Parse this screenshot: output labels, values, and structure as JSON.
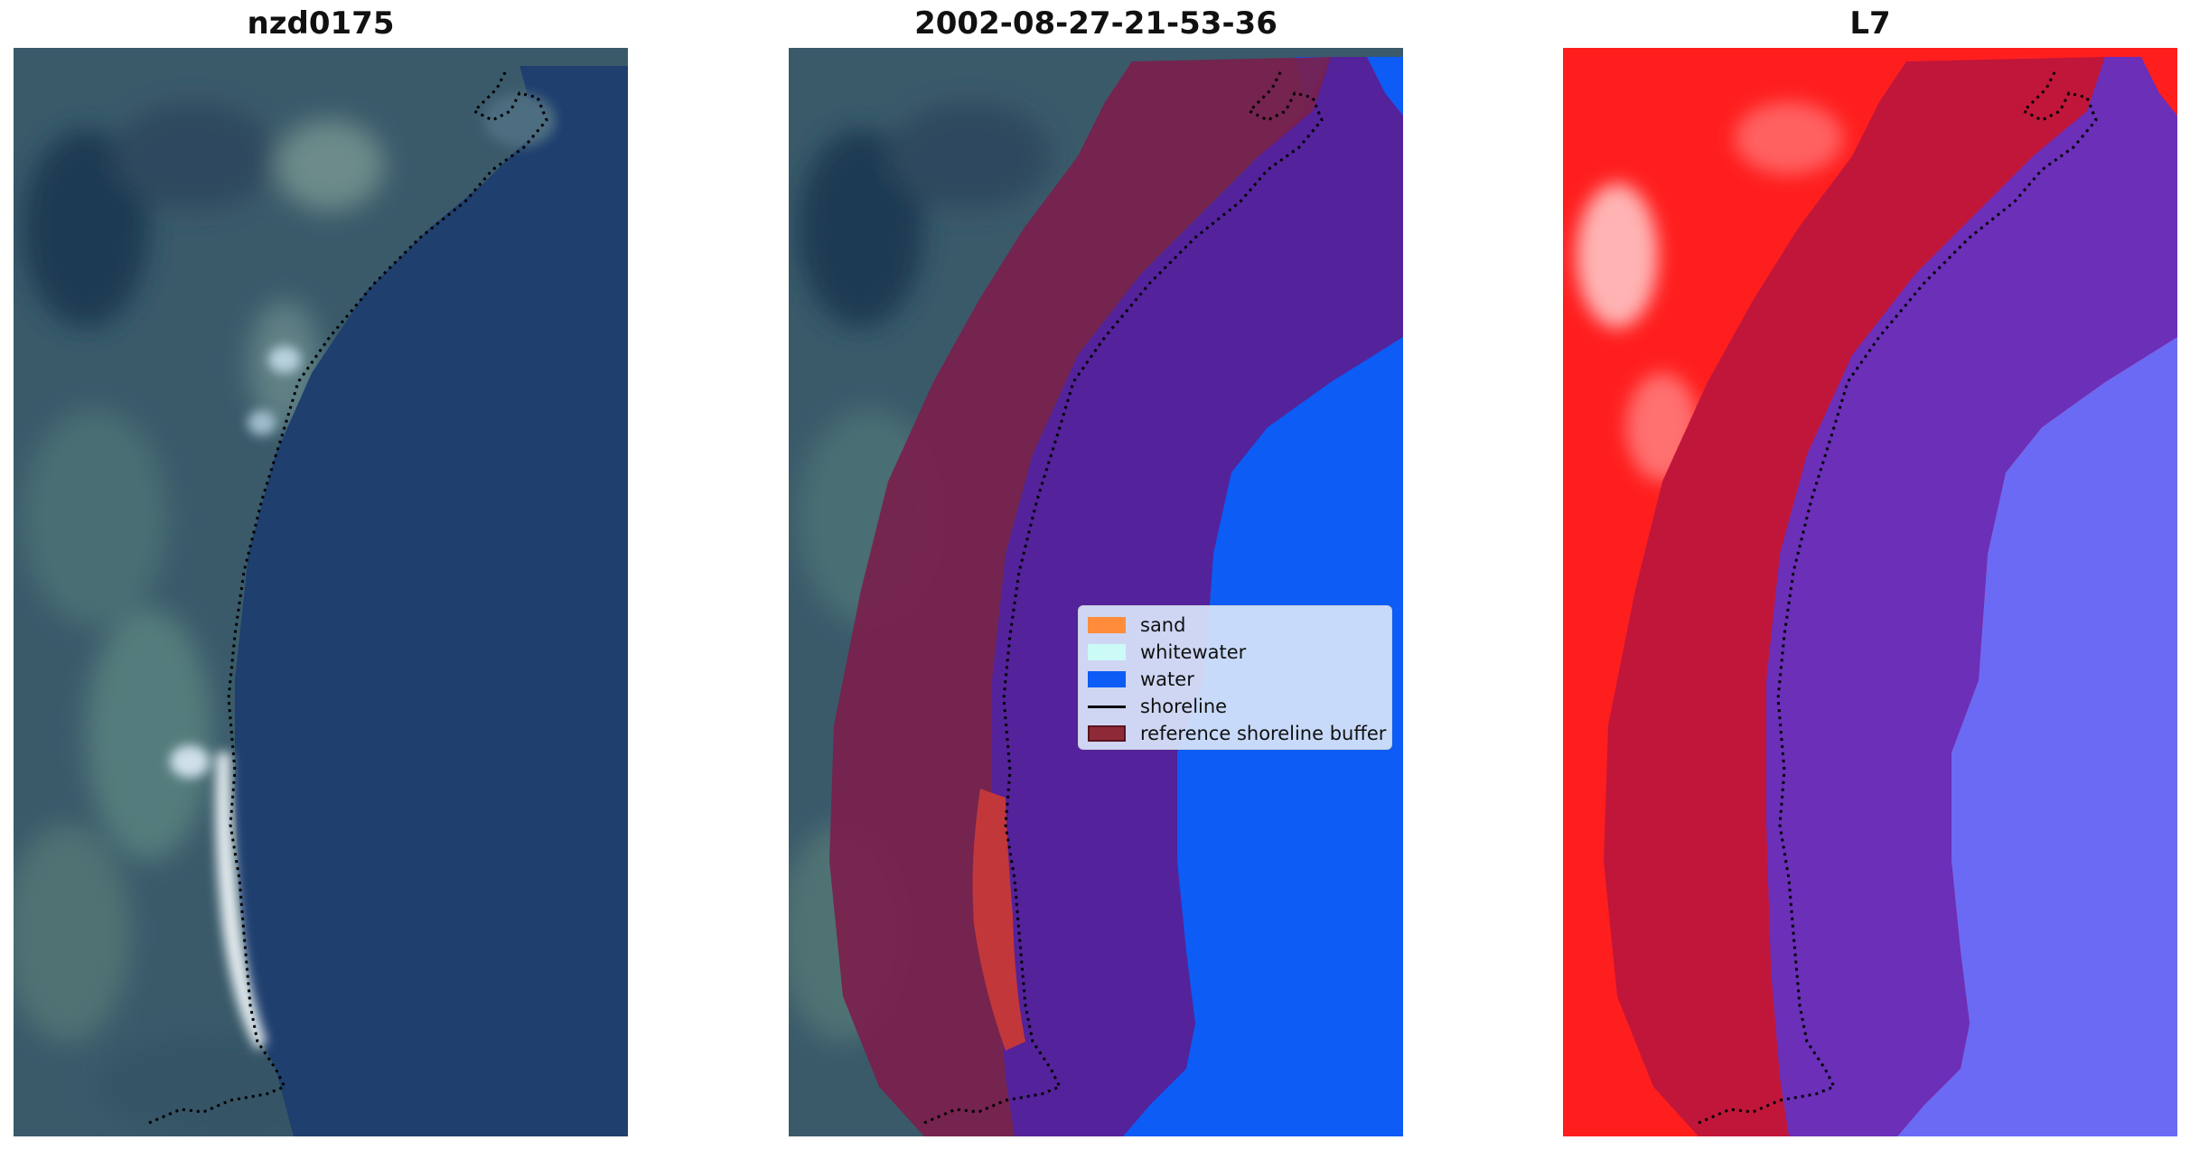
{
  "panels": [
    {
      "title": "nzd0175",
      "content": "rgb"
    },
    {
      "title": "2002-08-27-21-53-36",
      "content": "classification"
    },
    {
      "title": "L7",
      "content": "index"
    }
  ],
  "legend": {
    "items": [
      {
        "label": "sand",
        "color": "#ff8c3a",
        "kind": "patch"
      },
      {
        "label": "whitewater",
        "color": "#ccfbf7",
        "kind": "patch"
      },
      {
        "label": "water",
        "color": "#0d5cf5",
        "kind": "patch"
      },
      {
        "label": "shoreline",
        "color": "#000000",
        "kind": "line"
      },
      {
        "label": "reference shoreline buffer",
        "color": "#8e2a38",
        "kind": "patch"
      }
    ]
  },
  "colors": {
    "land": "#3c5b6b",
    "sea": "#1f3f6e",
    "beach": "#d8e2ea",
    "water_class": "#0d5cf5",
    "buffer": "#7a1f4c",
    "buffer_over_water": "#54229a",
    "sand_class": "#c2373a",
    "index_land": "#ff1e1e",
    "index_water": "#6a6af5"
  }
}
